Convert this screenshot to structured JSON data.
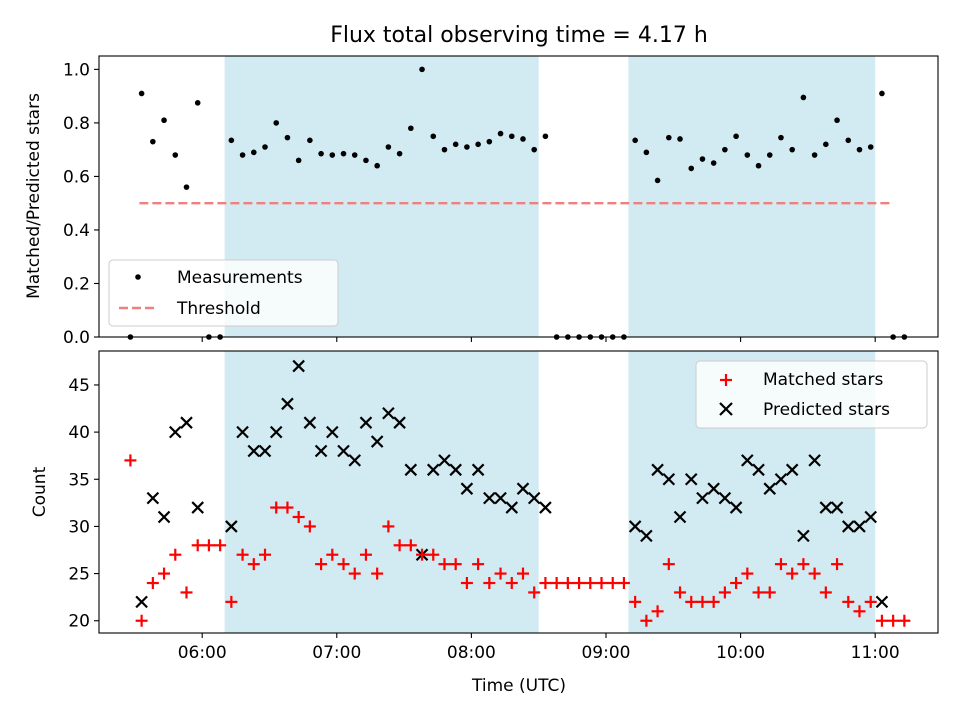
{
  "figure": {
    "title": "Flux total observing time = 4.17 h",
    "x_label": "Time (UTC)"
  },
  "colors": {
    "observing_band": "#add8e6",
    "threshold": "#f08080",
    "matched": "#ff0000",
    "predicted": "#000000",
    "measurements": "#000000"
  },
  "chart_data": [
    {
      "type": "scatter",
      "panel": "top",
      "ylabel": "Matched/Predicted stars",
      "xlim": [
        "05:14",
        "11:28"
      ],
      "ylim": [
        0,
        1.05
      ],
      "y_ticks": [
        0.0,
        0.2,
        0.4,
        0.6,
        0.8,
        1.0
      ],
      "y_tick_labels": [
        "0.0",
        "0.2",
        "0.4",
        "0.6",
        "0.8",
        "1.0"
      ],
      "legend_position": "lower-left",
      "observing_windows": [
        [
          "06:10",
          "08:30"
        ],
        [
          "09:10",
          "11:00"
        ]
      ],
      "threshold": {
        "name": "Threshold",
        "value": 0.5,
        "x_range": [
          "05:32",
          "11:08"
        ]
      },
      "series": [
        {
          "name": "Measurements",
          "marker": "dot",
          "x": [
            "05:28",
            "05:33",
            "05:38",
            "05:43",
            "05:48",
            "05:53",
            "05:58",
            "06:03",
            "06:08",
            "06:13",
            "06:18",
            "06:23",
            "06:28",
            "06:33",
            "06:38",
            "06:43",
            "06:48",
            "06:53",
            "06:58",
            "07:03",
            "07:08",
            "07:13",
            "07:18",
            "07:23",
            "07:28",
            "07:33",
            "07:38",
            "07:43",
            "07:48",
            "07:53",
            "07:58",
            "08:03",
            "08:08",
            "08:13",
            "08:18",
            "08:23",
            "08:28",
            "08:33",
            "08:38",
            "08:43",
            "08:48",
            "08:53",
            "08:58",
            "09:03",
            "09:08",
            "09:13",
            "09:18",
            "09:23",
            "09:28",
            "09:33",
            "09:38",
            "09:43",
            "09:48",
            "09:53",
            "09:58",
            "10:03",
            "10:08",
            "10:13",
            "10:18",
            "10:23",
            "10:28",
            "10:33",
            "10:38",
            "10:43",
            "10:48",
            "10:53",
            "10:58",
            "11:03",
            "11:08",
            "11:13"
          ],
          "y": [
            0.0,
            0.91,
            0.73,
            0.81,
            0.68,
            0.56,
            0.875,
            0.0,
            0.0,
            0.735,
            0.68,
            0.69,
            0.71,
            0.8,
            0.745,
            0.66,
            0.735,
            0.685,
            0.68,
            0.685,
            0.68,
            0.66,
            0.64,
            0.71,
            0.685,
            0.78,
            1.0,
            0.75,
            0.7,
            0.72,
            0.71,
            0.72,
            0.73,
            0.76,
            0.75,
            0.74,
            0.7,
            0.75,
            0.0,
            0.0,
            0.0,
            0.0,
            0.0,
            0.0,
            0.0,
            0.735,
            0.69,
            0.585,
            0.745,
            0.74,
            0.63,
            0.665,
            0.65,
            0.7,
            0.75,
            0.68,
            0.64,
            0.68,
            0.745,
            0.7,
            0.895,
            0.68,
            0.72,
            0.81,
            0.735,
            0.7,
            0.71,
            0.91,
            0.0,
            0.0
          ]
        }
      ]
    },
    {
      "type": "scatter",
      "panel": "bottom",
      "ylabel": "Count",
      "xlabel": "Time (UTC)",
      "xlim": [
        "05:14",
        "11:28"
      ],
      "ylim": [
        18.7,
        48.6
      ],
      "y_ticks": [
        20,
        25,
        30,
        35,
        40,
        45
      ],
      "y_tick_labels": [
        "20",
        "25",
        "30",
        "35",
        "40",
        "45"
      ],
      "x_ticks": [
        "06:00",
        "07:00",
        "08:00",
        "09:00",
        "10:00",
        "11:00"
      ],
      "x_tick_labels": [
        "06:00",
        "07:00",
        "08:00",
        "09:00",
        "10:00",
        "11:00"
      ],
      "legend_position": "upper-right",
      "observing_windows": [
        [
          "06:10",
          "08:30"
        ],
        [
          "09:10",
          "11:00"
        ]
      ],
      "series": [
        {
          "name": "Matched stars",
          "marker": "plus",
          "x": [
            "05:28",
            "05:33",
            "05:38",
            "05:43",
            "05:48",
            "05:53",
            "05:58",
            "06:03",
            "06:08",
            "06:13",
            "06:18",
            "06:23",
            "06:28",
            "06:33",
            "06:38",
            "06:43",
            "06:48",
            "06:53",
            "06:58",
            "07:03",
            "07:08",
            "07:13",
            "07:18",
            "07:23",
            "07:28",
            "07:33",
            "07:38",
            "07:43",
            "07:48",
            "07:53",
            "07:58",
            "08:03",
            "08:08",
            "08:13",
            "08:18",
            "08:23",
            "08:28",
            "08:33",
            "08:38",
            "08:43",
            "08:48",
            "08:53",
            "08:58",
            "09:03",
            "09:08",
            "09:13",
            "09:18",
            "09:23",
            "09:28",
            "09:33",
            "09:38",
            "09:43",
            "09:48",
            "09:53",
            "09:58",
            "10:03",
            "10:08",
            "10:13",
            "10:18",
            "10:23",
            "10:28",
            "10:33",
            "10:38",
            "10:43",
            "10:48",
            "10:53",
            "10:58",
            "11:03",
            "11:08",
            "11:13"
          ],
          "y": [
            37,
            20,
            24,
            25,
            27,
            23,
            28,
            28,
            28,
            22,
            27,
            26,
            27,
            32,
            32,
            31,
            30,
            26,
            27,
            26,
            25,
            27,
            25,
            30,
            28,
            28,
            27,
            27,
            26,
            26,
            24,
            26,
            24,
            25,
            24,
            25,
            23,
            24,
            24,
            24,
            24,
            24,
            24,
            24,
            24,
            22,
            20,
            21,
            26,
            23,
            22,
            22,
            22,
            23,
            24,
            25,
            23,
            23,
            26,
            25,
            26,
            25,
            23,
            26,
            22,
            21,
            22,
            20,
            20,
            20
          ]
        },
        {
          "name": "Predicted stars",
          "marker": "x",
          "x": [
            "05:33",
            "05:38",
            "05:43",
            "05:48",
            "05:53",
            "05:58",
            "06:13",
            "06:18",
            "06:23",
            "06:28",
            "06:33",
            "06:38",
            "06:43",
            "06:48",
            "06:53",
            "06:58",
            "07:03",
            "07:08",
            "07:13",
            "07:18",
            "07:23",
            "07:28",
            "07:33",
            "07:38",
            "07:43",
            "07:48",
            "07:53",
            "07:58",
            "08:03",
            "08:08",
            "08:13",
            "08:18",
            "08:23",
            "08:28",
            "08:33",
            "09:13",
            "09:18",
            "09:23",
            "09:28",
            "09:33",
            "09:38",
            "09:43",
            "09:48",
            "09:53",
            "09:58",
            "10:03",
            "10:08",
            "10:13",
            "10:18",
            "10:23",
            "10:28",
            "10:33",
            "10:38",
            "10:43",
            "10:48",
            "10:53",
            "10:58",
            "11:03"
          ],
          "y": [
            22,
            33,
            31,
            40,
            41,
            32,
            30,
            40,
            38,
            38,
            40,
            43,
            47,
            41,
            38,
            40,
            38,
            37,
            41,
            39,
            42,
            41,
            36,
            27,
            36,
            37,
            36,
            34,
            36,
            33,
            33,
            32,
            34,
            33,
            32,
            30,
            29,
            36,
            35,
            31,
            35,
            33,
            34,
            33,
            32,
            37,
            36,
            34,
            35,
            36,
            29,
            37,
            32,
            32,
            30,
            30,
            31,
            22
          ]
        }
      ]
    }
  ]
}
